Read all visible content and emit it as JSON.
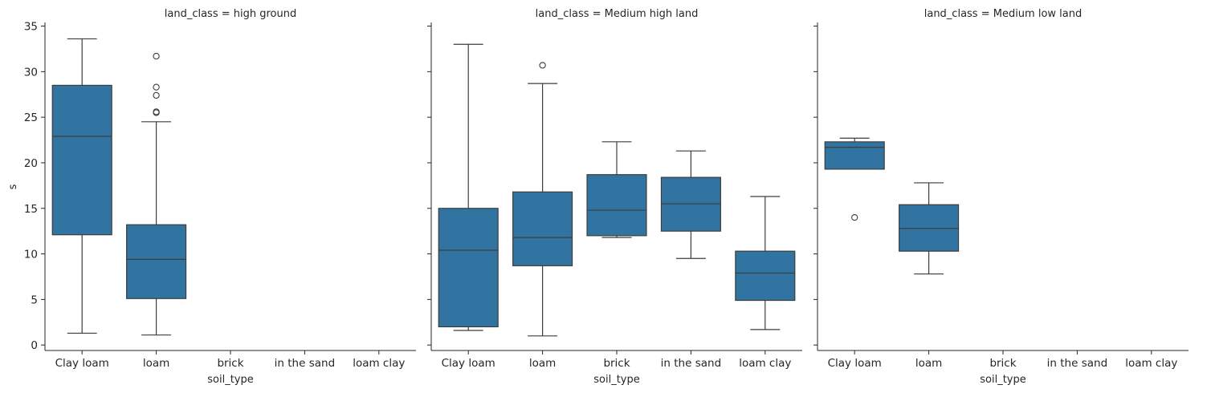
{
  "chart_data": {
    "type": "box",
    "facet_variable": "land_class",
    "xlabel": "soil_type",
    "ylabel": "s",
    "ylim": [
      -0.6,
      35.4
    ],
    "yticks": [
      0,
      5,
      10,
      15,
      20,
      25,
      30,
      35
    ],
    "categories": [
      "Clay loam",
      "loam",
      "brick",
      "in the sand",
      "loam clay"
    ],
    "box_color": "#3274a1",
    "line_color": "#3d3d3d",
    "grid": false,
    "panels": [
      {
        "title": "land_class = high ground",
        "boxes": [
          {
            "category": "Clay loam",
            "whisker_low": 1.3,
            "q1": 12.1,
            "median": 22.9,
            "q3": 28.5,
            "whisker_high": 33.6,
            "outliers": []
          },
          {
            "category": "loam",
            "whisker_low": 1.1,
            "q1": 5.1,
            "median": 9.4,
            "q3": 13.2,
            "whisker_high": 24.5,
            "outliers": [
              25.5,
              25.6,
              27.4,
              28.3,
              31.7
            ]
          }
        ]
      },
      {
        "title": "land_class = Medium high land",
        "boxes": [
          {
            "category": "Clay loam",
            "whisker_low": 1.6,
            "q1": 2.0,
            "median": 10.4,
            "q3": 15.0,
            "whisker_high": 33.0,
            "outliers": []
          },
          {
            "category": "loam",
            "whisker_low": 1.0,
            "q1": 8.7,
            "median": 11.8,
            "q3": 16.8,
            "whisker_high": 28.7,
            "outliers": [
              30.7
            ]
          },
          {
            "category": "brick",
            "whisker_low": 11.8,
            "q1": 12.0,
            "median": 14.8,
            "q3": 18.7,
            "whisker_high": 22.3,
            "outliers": []
          },
          {
            "category": "in the sand",
            "whisker_low": 9.5,
            "q1": 12.5,
            "median": 15.5,
            "q3": 18.4,
            "whisker_high": 21.3,
            "outliers": []
          },
          {
            "category": "loam clay",
            "whisker_low": 1.7,
            "q1": 4.9,
            "median": 7.9,
            "q3": 10.3,
            "whisker_high": 16.3,
            "outliers": []
          }
        ]
      },
      {
        "title": "land_class = Medium low land",
        "boxes": [
          {
            "category": "Clay loam",
            "whisker_low": 19.3,
            "q1": 19.3,
            "median": 21.7,
            "q3": 22.3,
            "whisker_high": 22.7,
            "outliers": [
              14.0
            ]
          },
          {
            "category": "loam",
            "whisker_low": 7.8,
            "q1": 10.3,
            "median": 12.8,
            "q3": 15.4,
            "whisker_high": 17.8,
            "outliers": []
          }
        ]
      }
    ]
  }
}
